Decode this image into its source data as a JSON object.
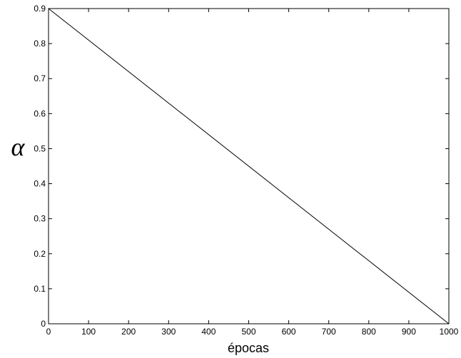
{
  "chart_data": {
    "type": "line",
    "title": "",
    "xlabel": "épocas",
    "ylabel": "α",
    "xlim": [
      0,
      1000
    ],
    "ylim": [
      0,
      0.9
    ],
    "grid": false,
    "x_ticks": [
      "0",
      "100",
      "200",
      "300",
      "400",
      "500",
      "600",
      "700",
      "800",
      "900",
      "1000"
    ],
    "y_ticks": [
      "0",
      "0.1",
      "0.2",
      "0.3",
      "0.4",
      "0.5",
      "0.6",
      "0.7",
      "0.8",
      "0.9"
    ],
    "series": [
      {
        "x": [
          0,
          1000
        ],
        "y": [
          0.9,
          0
        ],
        "color": "#000000"
      }
    ]
  }
}
